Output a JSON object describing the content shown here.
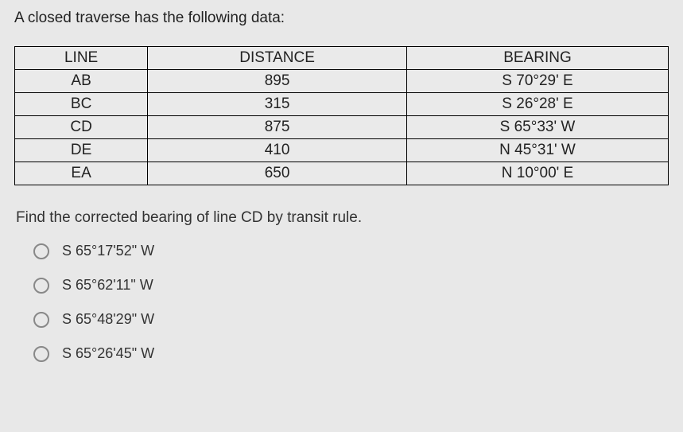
{
  "title": "A closed traverse has the following data:",
  "table": {
    "headers": [
      "LINE",
      "DISTANCE",
      "BEARING"
    ],
    "rows": [
      [
        "AB",
        "895",
        "S 70°29' E"
      ],
      [
        "BC",
        "315",
        "S 26°28' E"
      ],
      [
        "CD",
        "875",
        "S 65°33' W"
      ],
      [
        "DE",
        "410",
        "N 45°31' W"
      ],
      [
        "EA",
        "650",
        "N 10°00' E"
      ]
    ]
  },
  "subQuestion": "Find the corrected bearing of line CD by transit rule.",
  "options": [
    "S 65°17'52\" W",
    "S 65°62'11\" W",
    "S 65°48'29\" W",
    "S 65°26'45\" W"
  ],
  "colors": {
    "background": "#e8e8e8",
    "tableBorder": "#000000",
    "text": "#222222",
    "radioBorder": "#888888"
  }
}
